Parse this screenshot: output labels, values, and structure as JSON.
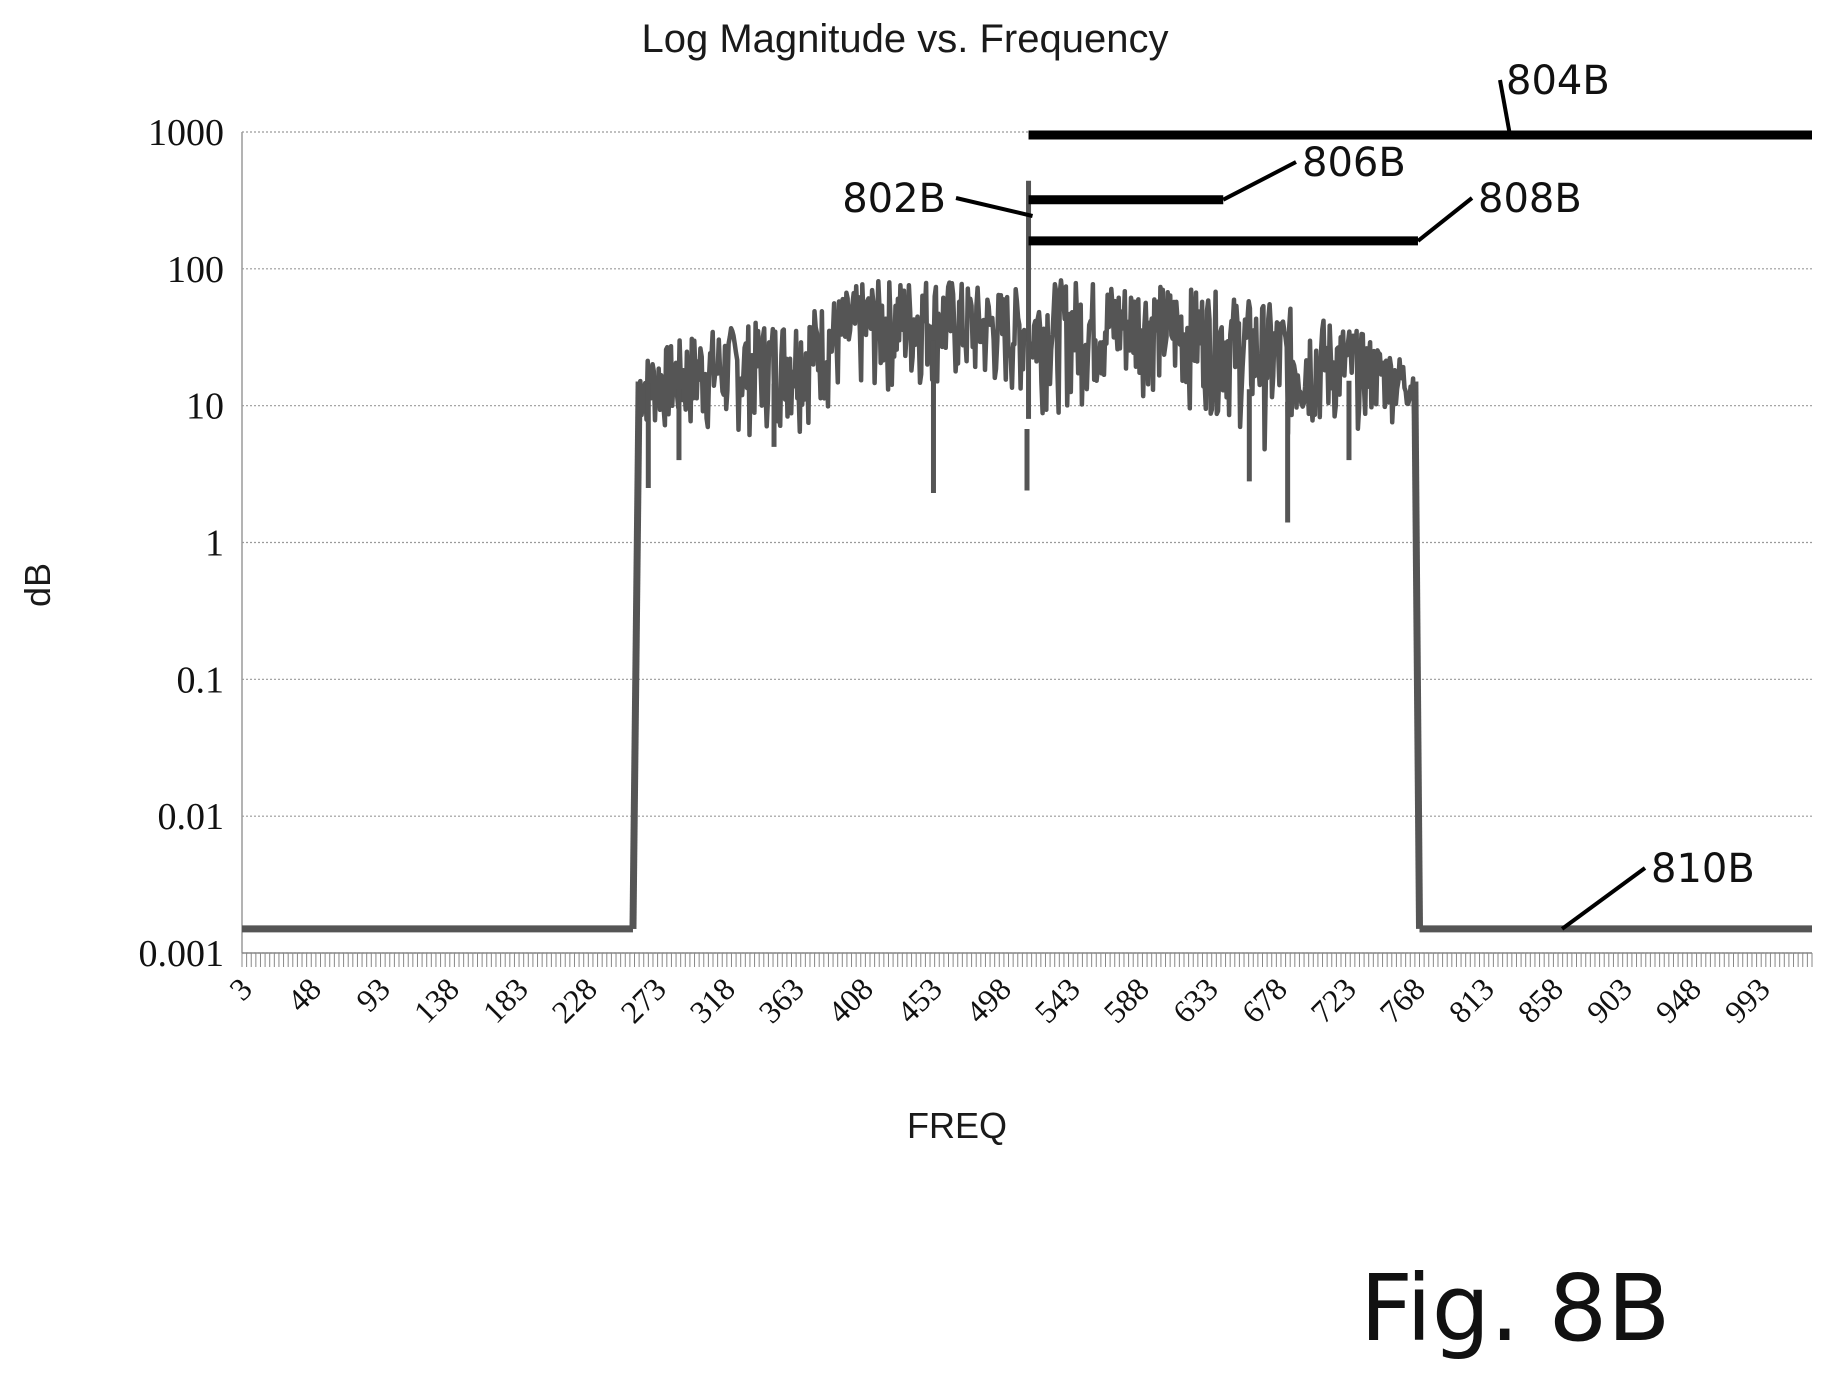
{
  "chart_data": {
    "type": "line",
    "title": "Log Magnitude vs. Frequency",
    "xlabel": "FREQ",
    "ylabel": "dB",
    "yscale": "log",
    "ylim": [
      0.001,
      1000
    ],
    "xlim": [
      3,
      1027
    ],
    "grid": true,
    "y_ticks": [
      "1000",
      "100",
      "10",
      "1",
      "0.1",
      "0.01",
      "0.001"
    ],
    "x_ticks": [
      "3",
      "48",
      "93",
      "138",
      "183",
      "228",
      "273",
      "318",
      "363",
      "408",
      "453",
      "498",
      "543",
      "588",
      "633",
      "678",
      "723",
      "768",
      "813",
      "858",
      "903",
      "948",
      "993"
    ],
    "series": [
      {
        "values_description_free": true,
        "color": "#555555",
        "segments": [
          {
            "x": [
              3,
              258
            ],
            "y": [
              0.0015,
              0.0015
            ]
          },
          {
            "x": [
              258,
              262
            ],
            "y": [
              0.0015,
              15
            ]
          },
          {
            "x": [
              768,
              771
            ],
            "y": [
              15,
              0.0015
            ]
          },
          {
            "x": [
              771,
              1027
            ],
            "y": [
              0.0015,
              0.0015
            ]
          }
        ],
        "band": {
          "x_start": 262,
          "x_end": 768,
          "envelope_upper": [
            [
              262,
              22
            ],
            [
              300,
              35
            ],
            [
              363,
              45
            ],
            [
              408,
              80
            ],
            [
              453,
              90
            ],
            [
              498,
              70
            ],
            [
              516,
              440
            ],
            [
              543,
              85
            ],
            [
              588,
              80
            ],
            [
              633,
              70
            ],
            [
              678,
              55
            ],
            [
              723,
              40
            ],
            [
              768,
              20
            ]
          ],
          "envelope_lower": [
            [
              262,
              6
            ],
            [
              300,
              5
            ],
            [
              363,
              6
            ],
            [
              408,
              10
            ],
            [
              453,
              12
            ],
            [
              498,
              10
            ],
            [
              516,
              2.5
            ],
            [
              543,
              8
            ],
            [
              588,
              12
            ],
            [
              633,
              8
            ],
            [
              678,
              4
            ],
            [
              723,
              6
            ],
            [
              768,
              8
            ]
          ],
          "dips": [
            [
              268,
              2.5
            ],
            [
              288,
              4
            ],
            [
              350,
              5
            ],
            [
              454,
              2.3
            ],
            [
              515,
              2.4
            ],
            [
              660,
              2.8
            ],
            [
              685,
              1.4
            ],
            [
              725,
              4
            ]
          ]
        }
      }
    ],
    "reference_lines": [
      {
        "label": "804B",
        "x": [
          516,
          1027
        ],
        "y": 950
      },
      {
        "label": "806B",
        "x": [
          516,
          643
        ],
        "y": 320
      },
      {
        "label": "808B",
        "x": [
          516,
          770
        ],
        "y": 160
      }
    ],
    "peak": {
      "label": "802B",
      "x": 516,
      "y": 440
    },
    "floor_label": "810B",
    "colors": {
      "line": "#555555",
      "reference": "#000000",
      "grid": "#9a9a9a"
    }
  },
  "figure_label": "Fig. 8B"
}
